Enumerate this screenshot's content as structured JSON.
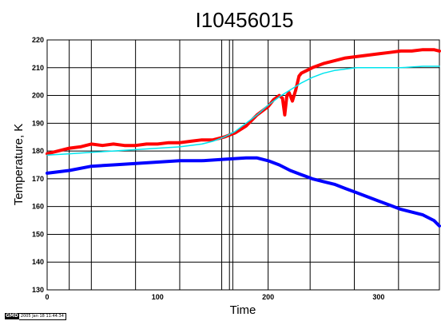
{
  "chart_data": {
    "type": "line",
    "title": "I10456015",
    "xlabel": "Time",
    "ylabel": "Temperature, K",
    "xlim": [
      0,
      355
    ],
    "ylim": [
      130,
      220
    ],
    "xticks": [
      0,
      100,
      200,
      300
    ],
    "yticks": [
      130,
      140,
      150,
      160,
      170,
      180,
      190,
      200,
      210,
      220
    ],
    "grid": true,
    "vertical_gridlines": [
      0,
      20,
      40,
      80,
      120,
      158,
      165,
      168,
      200,
      238,
      278,
      318,
      355
    ],
    "series": [
      {
        "color": "#ff0000",
        "x": [
          0,
          10,
          20,
          30,
          40,
          50,
          60,
          70,
          80,
          90,
          100,
          110,
          120,
          130,
          140,
          150,
          160,
          170,
          180,
          190,
          200,
          205,
          210,
          213,
          215,
          217,
          219,
          222,
          225,
          228,
          230,
          235,
          240,
          250,
          260,
          270,
          280,
          290,
          300,
          310,
          320,
          330,
          340,
          350,
          355
        ],
        "values": [
          179.0,
          180.0,
          181.0,
          181.5,
          182.5,
          182.0,
          182.5,
          182.0,
          182.0,
          182.5,
          182.5,
          183.0,
          183.0,
          183.5,
          184.0,
          184.0,
          185.0,
          186.5,
          189.0,
          193.0,
          196.0,
          198.5,
          200.0,
          199.0,
          193.0,
          200.0,
          201.0,
          198.0,
          202.0,
          207.0,
          208.0,
          209.0,
          210.0,
          211.5,
          212.5,
          213.5,
          214.0,
          214.5,
          215.0,
          215.5,
          216.0,
          216.0,
          216.5,
          216.5,
          216.0
        ]
      },
      {
        "color": "#00e5ee",
        "x": [
          0,
          20,
          40,
          60,
          80,
          100,
          120,
          140,
          150,
          160,
          170,
          180,
          190,
          200,
          210,
          220,
          230,
          240,
          250,
          260,
          270,
          280,
          290,
          300,
          320,
          340,
          355
        ],
        "values": [
          178.5,
          179.0,
          179.5,
          180.0,
          180.5,
          181.0,
          181.5,
          182.5,
          183.5,
          185.0,
          187.0,
          190.0,
          193.0,
          196.5,
          199.5,
          202.0,
          204.5,
          206.5,
          208.0,
          209.0,
          209.5,
          210.0,
          210.0,
          210.0,
          210.0,
          210.5,
          210.5
        ]
      },
      {
        "color": "#0000ff",
        "x": [
          0,
          20,
          40,
          60,
          80,
          100,
          120,
          140,
          160,
          180,
          190,
          200,
          210,
          220,
          230,
          240,
          250,
          260,
          270,
          280,
          290,
          300,
          310,
          320,
          330,
          340,
          350,
          355
        ],
        "values": [
          172.0,
          173.0,
          174.5,
          175.0,
          175.5,
          176.0,
          176.5,
          176.5,
          177.0,
          177.5,
          177.5,
          176.5,
          175.0,
          173.0,
          171.5,
          170.0,
          169.0,
          168.0,
          166.5,
          165.0,
          163.5,
          162.0,
          160.5,
          159.0,
          158.0,
          157.0,
          155.0,
          153.0
        ]
      }
    ]
  },
  "stamp": {
    "logo": "GMD",
    "text": "2005 Jan 18 11:44:34"
  }
}
